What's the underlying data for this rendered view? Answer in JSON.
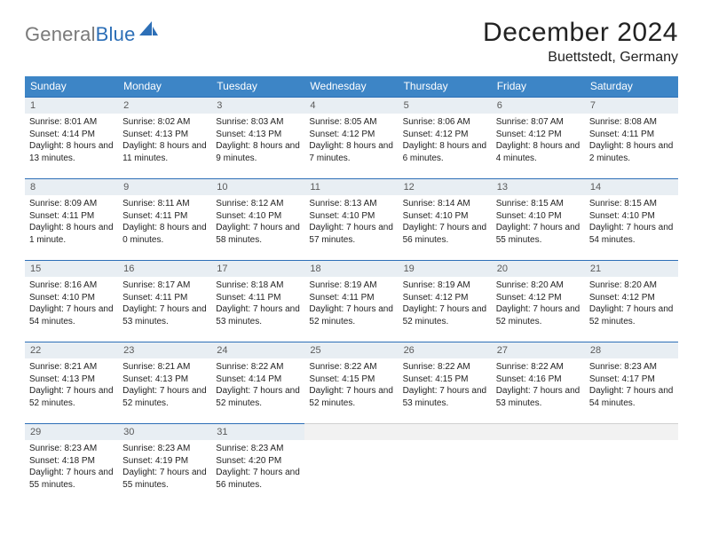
{
  "brand": {
    "word1": "General",
    "word2": "Blue",
    "logo_color": "#2d6fb7",
    "grey": "#7a7a7a"
  },
  "title": "December 2024",
  "location": "Buettstedt, Germany",
  "colors": {
    "header_bg": "#3d85c6",
    "header_text": "#ffffff",
    "daynum_bg": "#e8eef3",
    "daynum_border": "#2d6fb7",
    "text": "#232323"
  },
  "weekdays": [
    "Sunday",
    "Monday",
    "Tuesday",
    "Wednesday",
    "Thursday",
    "Friday",
    "Saturday"
  ],
  "weeks": [
    [
      {
        "n": 1,
        "sr": "8:01 AM",
        "ss": "4:14 PM",
        "dl": "8 hours and 13 minutes."
      },
      {
        "n": 2,
        "sr": "8:02 AM",
        "ss": "4:13 PM",
        "dl": "8 hours and 11 minutes."
      },
      {
        "n": 3,
        "sr": "8:03 AM",
        "ss": "4:13 PM",
        "dl": "8 hours and 9 minutes."
      },
      {
        "n": 4,
        "sr": "8:05 AM",
        "ss": "4:12 PM",
        "dl": "8 hours and 7 minutes."
      },
      {
        "n": 5,
        "sr": "8:06 AM",
        "ss": "4:12 PM",
        "dl": "8 hours and 6 minutes."
      },
      {
        "n": 6,
        "sr": "8:07 AM",
        "ss": "4:12 PM",
        "dl": "8 hours and 4 minutes."
      },
      {
        "n": 7,
        "sr": "8:08 AM",
        "ss": "4:11 PM",
        "dl": "8 hours and 2 minutes."
      }
    ],
    [
      {
        "n": 8,
        "sr": "8:09 AM",
        "ss": "4:11 PM",
        "dl": "8 hours and 1 minute."
      },
      {
        "n": 9,
        "sr": "8:11 AM",
        "ss": "4:11 PM",
        "dl": "8 hours and 0 minutes."
      },
      {
        "n": 10,
        "sr": "8:12 AM",
        "ss": "4:10 PM",
        "dl": "7 hours and 58 minutes."
      },
      {
        "n": 11,
        "sr": "8:13 AM",
        "ss": "4:10 PM",
        "dl": "7 hours and 57 minutes."
      },
      {
        "n": 12,
        "sr": "8:14 AM",
        "ss": "4:10 PM",
        "dl": "7 hours and 56 minutes."
      },
      {
        "n": 13,
        "sr": "8:15 AM",
        "ss": "4:10 PM",
        "dl": "7 hours and 55 minutes."
      },
      {
        "n": 14,
        "sr": "8:15 AM",
        "ss": "4:10 PM",
        "dl": "7 hours and 54 minutes."
      }
    ],
    [
      {
        "n": 15,
        "sr": "8:16 AM",
        "ss": "4:10 PM",
        "dl": "7 hours and 54 minutes."
      },
      {
        "n": 16,
        "sr": "8:17 AM",
        "ss": "4:11 PM",
        "dl": "7 hours and 53 minutes."
      },
      {
        "n": 17,
        "sr": "8:18 AM",
        "ss": "4:11 PM",
        "dl": "7 hours and 53 minutes."
      },
      {
        "n": 18,
        "sr": "8:19 AM",
        "ss": "4:11 PM",
        "dl": "7 hours and 52 minutes."
      },
      {
        "n": 19,
        "sr": "8:19 AM",
        "ss": "4:12 PM",
        "dl": "7 hours and 52 minutes."
      },
      {
        "n": 20,
        "sr": "8:20 AM",
        "ss": "4:12 PM",
        "dl": "7 hours and 52 minutes."
      },
      {
        "n": 21,
        "sr": "8:20 AM",
        "ss": "4:12 PM",
        "dl": "7 hours and 52 minutes."
      }
    ],
    [
      {
        "n": 22,
        "sr": "8:21 AM",
        "ss": "4:13 PM",
        "dl": "7 hours and 52 minutes."
      },
      {
        "n": 23,
        "sr": "8:21 AM",
        "ss": "4:13 PM",
        "dl": "7 hours and 52 minutes."
      },
      {
        "n": 24,
        "sr": "8:22 AM",
        "ss": "4:14 PM",
        "dl": "7 hours and 52 minutes."
      },
      {
        "n": 25,
        "sr": "8:22 AM",
        "ss": "4:15 PM",
        "dl": "7 hours and 52 minutes."
      },
      {
        "n": 26,
        "sr": "8:22 AM",
        "ss": "4:15 PM",
        "dl": "7 hours and 53 minutes."
      },
      {
        "n": 27,
        "sr": "8:22 AM",
        "ss": "4:16 PM",
        "dl": "7 hours and 53 minutes."
      },
      {
        "n": 28,
        "sr": "8:23 AM",
        "ss": "4:17 PM",
        "dl": "7 hours and 54 minutes."
      }
    ],
    [
      {
        "n": 29,
        "sr": "8:23 AM",
        "ss": "4:18 PM",
        "dl": "7 hours and 55 minutes."
      },
      {
        "n": 30,
        "sr": "8:23 AM",
        "ss": "4:19 PM",
        "dl": "7 hours and 55 minutes."
      },
      {
        "n": 31,
        "sr": "8:23 AM",
        "ss": "4:20 PM",
        "dl": "7 hours and 56 minutes."
      },
      null,
      null,
      null,
      null
    ]
  ],
  "labels": {
    "sunrise": "Sunrise:",
    "sunset": "Sunset:",
    "daylight": "Daylight:"
  }
}
